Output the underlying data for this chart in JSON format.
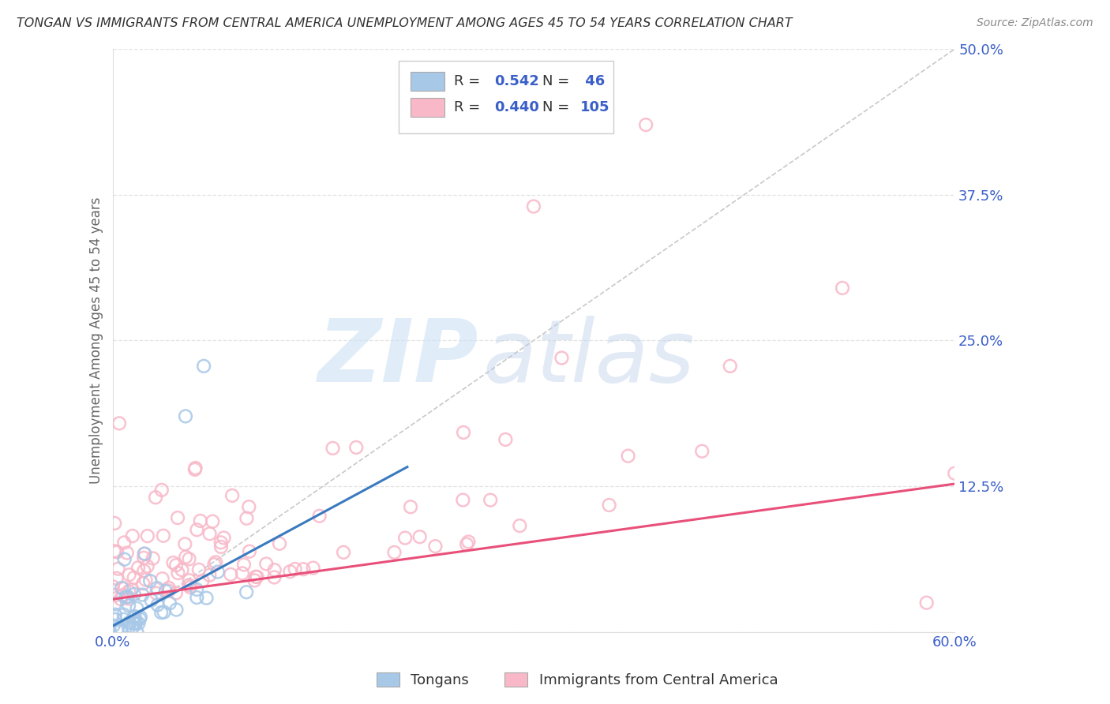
{
  "title": "TONGAN VS IMMIGRANTS FROM CENTRAL AMERICA UNEMPLOYMENT AMONG AGES 45 TO 54 YEARS CORRELATION CHART",
  "source": "Source: ZipAtlas.com",
  "ylabel": "Unemployment Among Ages 45 to 54 years",
  "xlim": [
    0.0,
    0.6
  ],
  "ylim": [
    0.0,
    0.5
  ],
  "ytick_positions": [
    0.0,
    0.125,
    0.25,
    0.375,
    0.5
  ],
  "ytick_labels": [
    "",
    "12.5%",
    "25.0%",
    "37.5%",
    "50.0%"
  ],
  "tongan_R": 0.542,
  "tongan_N": 46,
  "central_america_R": 0.44,
  "central_america_N": 105,
  "blue_scatter_color": "#a8c8e8",
  "pink_scatter_color": "#f8b8c8",
  "blue_line_color": "#3a7abf",
  "pink_line_color": "#e8507a",
  "gray_diag_color": "#bbbbbb",
  "label_color": "#3a5fc8",
  "text_color": "#333333",
  "source_color": "#888888",
  "background_color": "#ffffff",
  "grid_color": "#dddddd",
  "watermark_color_zip": "#c8dff5",
  "watermark_color_atlas": "#b8cce8"
}
